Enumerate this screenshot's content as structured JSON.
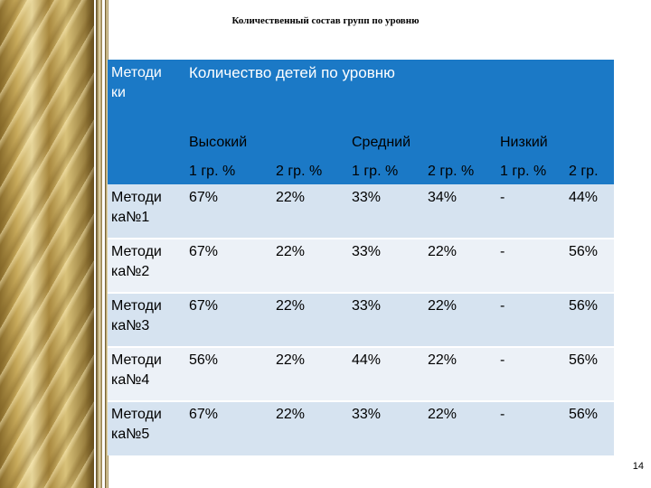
{
  "slide": {
    "title": "Количественный состав групп по уровню",
    "page_number": "14"
  },
  "table": {
    "corner_header": [
      "Методи",
      "ки"
    ],
    "main_header": "Количество детей по уровню",
    "levels": [
      "Высокий",
      "Средний",
      "Низкий"
    ],
    "groups": [
      "1 гр. %",
      "2 гр. %",
      "1 гр. %",
      "2 гр. %",
      "1 гр. %",
      "2 гр. %"
    ],
    "rows": [
      {
        "label": [
          "Методи",
          "ка№1"
        ],
        "values": [
          "67%",
          "22%",
          "33%",
          "34%",
          "-",
          "44%"
        ]
      },
      {
        "label": [
          "Методи",
          "ка№2"
        ],
        "values": [
          "67%",
          "22%",
          "33%",
          "22%",
          "-",
          "56%"
        ]
      },
      {
        "label": [
          "Методи",
          "ка№3"
        ],
        "values": [
          "67%",
          "22%",
          "33%",
          "22%",
          "-",
          "56%"
        ]
      },
      {
        "label": [
          "Методи",
          "ка№4"
        ],
        "values": [
          "56%",
          "22%",
          "44%",
          "22%",
          "-",
          "56%"
        ]
      },
      {
        "label": [
          "Методи",
          "ка№5"
        ],
        "values": [
          "67%",
          "22%",
          "33%",
          "22%",
          "-",
          "56%"
        ]
      }
    ]
  },
  "colors": {
    "header_blue": "#1b79c6",
    "row_dark": "#d6e3f0",
    "row_light": "#ecf1f7",
    "decor_gold": "#c7a95a"
  }
}
